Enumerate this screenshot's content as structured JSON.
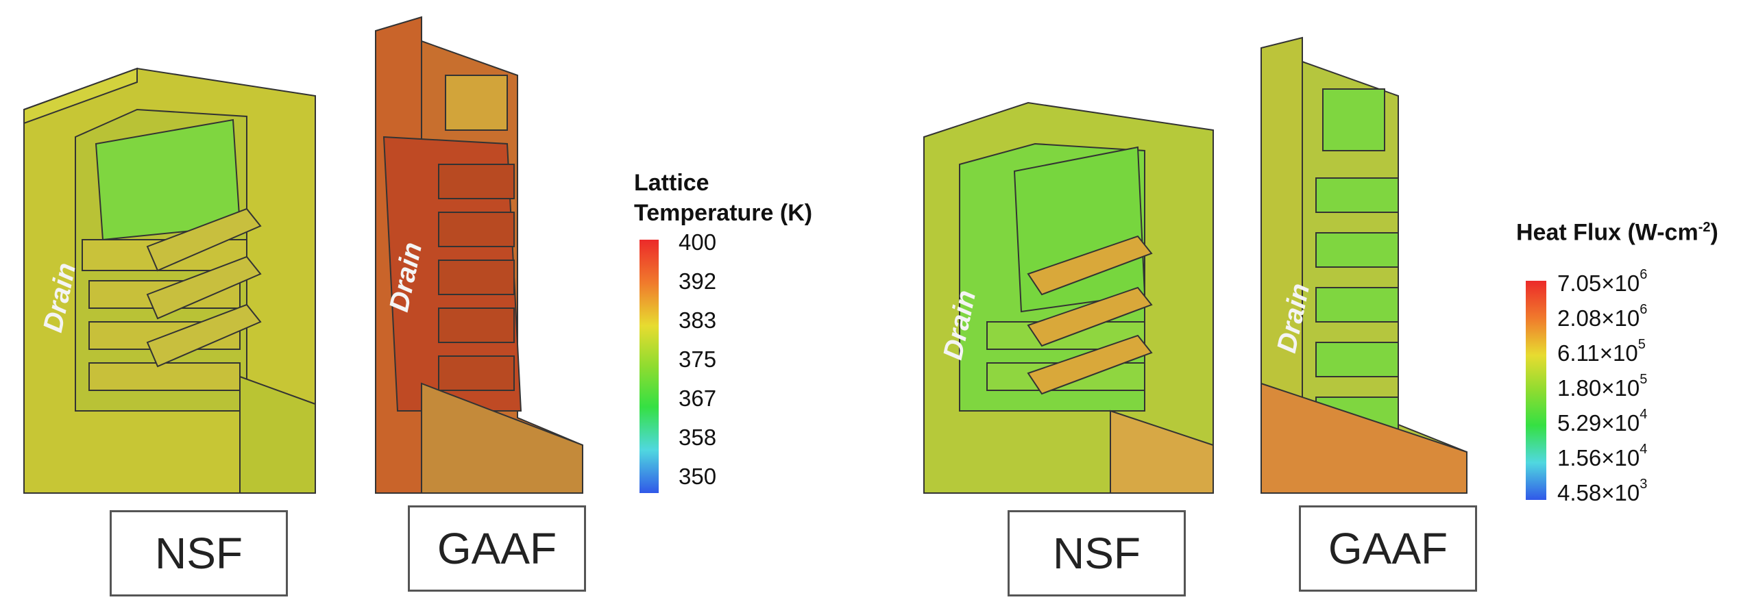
{
  "panels": {
    "temp_nsf_label": "NSF",
    "temp_gaaf_label": "GAAF",
    "flux_nsf_label": "NSF",
    "flux_gaaf_label": "GAAF",
    "drain_label": "Drain"
  },
  "temperature_legend": {
    "title_line1": "Lattice",
    "title_line2": "Temperature (K)",
    "ticks": [
      "400",
      "392",
      "383",
      "375",
      "367",
      "358",
      "350"
    ],
    "colors": [
      "#ec2a2a",
      "#f0a030",
      "#e7dc30",
      "#8fdc30",
      "#35e043",
      "#50d8e0",
      "#3058e8"
    ]
  },
  "flux_legend": {
    "title": "Heat Flux (W-cm",
    "title_exp": "-2",
    "title_end": ")",
    "ticks": [
      {
        "mantissa": "7.05×10",
        "exp": "6"
      },
      {
        "mantissa": "2.08×10",
        "exp": "6"
      },
      {
        "mantissa": "6.11×10",
        "exp": "5"
      },
      {
        "mantissa": "1.80×10",
        "exp": "5"
      },
      {
        "mantissa": "5.29×10",
        "exp": "4"
      },
      {
        "mantissa": "1.56×10",
        "exp": "4"
      },
      {
        "mantissa": "4.58×10",
        "exp": "3"
      }
    ],
    "colors": [
      "#ec2a2a",
      "#f0a030",
      "#e7dc30",
      "#8fdc30",
      "#35e043",
      "#50d8e0",
      "#3058e8"
    ]
  },
  "device_colors": {
    "nsf_temp": "#c9c832",
    "gaaf_temp": "#c85a28",
    "nsf_flux": "#7fd640",
    "gaaf_flux": "#b8c83a",
    "flux_hot": "#d98a3a"
  }
}
